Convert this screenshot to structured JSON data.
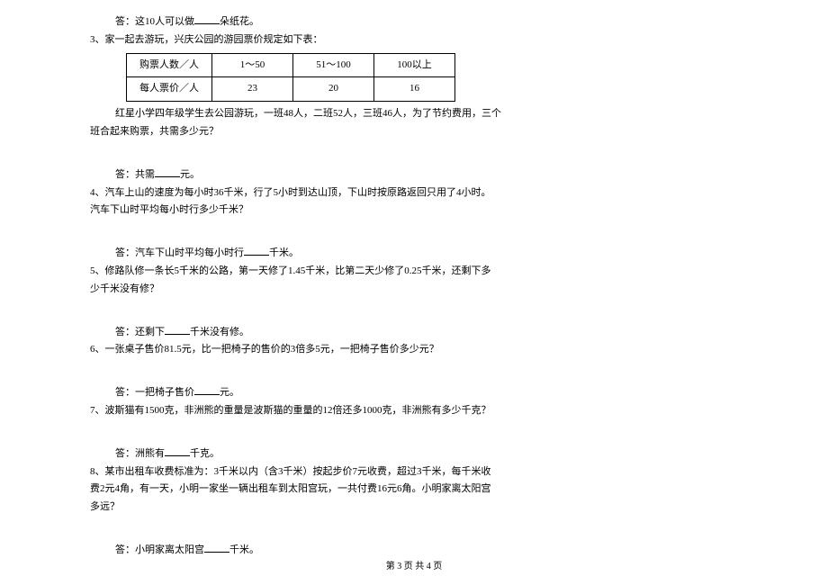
{
  "answer2": "答：这10人可以做",
  "answer2_suffix": "朵纸花。",
  "q3": "3、家一起去游玩，兴庆公园的游园票价规定如下表：",
  "table": {
    "headers": [
      "购票人数／人",
      "1～50",
      "51～100",
      "100以上"
    ],
    "row": [
      "每人票价／人",
      "23",
      "20",
      "16"
    ]
  },
  "q3_body1": "红星小学四年级学生去公园游玩，一班48人，二班52人，三班46人，为了节约费用，三个",
  "q3_body2": "班合起来购票，共需多少元？",
  "answer3": "答：共需",
  "answer3_suffix": "元。",
  "q4_1": "4、汽车上山的速度为每小时36千米，行了5小时到达山顶，下山时按原路返回只用了4小时。",
  "q4_2": "汽车下山时平均每小时行多少千米？",
  "answer4": "答：汽车下山时平均每小时行",
  "answer4_suffix": "千米。",
  "q5_1": "5、修路队修一条长5千米的公路，第一天修了1.45千米，比第二天少修了0.25千米，还剩下多",
  "q5_2": "少千米没有修？",
  "answer5": "答：还剩下",
  "answer5_suffix": "千米没有修。",
  "q6": "6、一张桌子售价81.5元，比一把椅子的售价的3倍多5元，一把椅子售价多少元？",
  "answer6": "答：一把椅子售价",
  "answer6_suffix": "元。",
  "q7": "7、波斯猫有1500克，非洲熊的重量是波斯猫的重量的12倍还多1000克，非洲熊有多少千克？",
  "answer7": "答：洲熊有",
  "answer7_suffix": "千克。",
  "q8_1": "8、某市出租车收费标准为：3千米以内（含3千米）按起步价7元收费，超过3千米，每千米收",
  "q8_2": "费2元4角，有一天，小明一家坐一辆出租车到太阳宫玩，一共付费16元6角。小明家离太阳宫",
  "q8_3": "多远？",
  "answer8": "答：小明家离太阳宫",
  "answer8_suffix": "千米。",
  "footer": "第 3 页 共 4 页"
}
